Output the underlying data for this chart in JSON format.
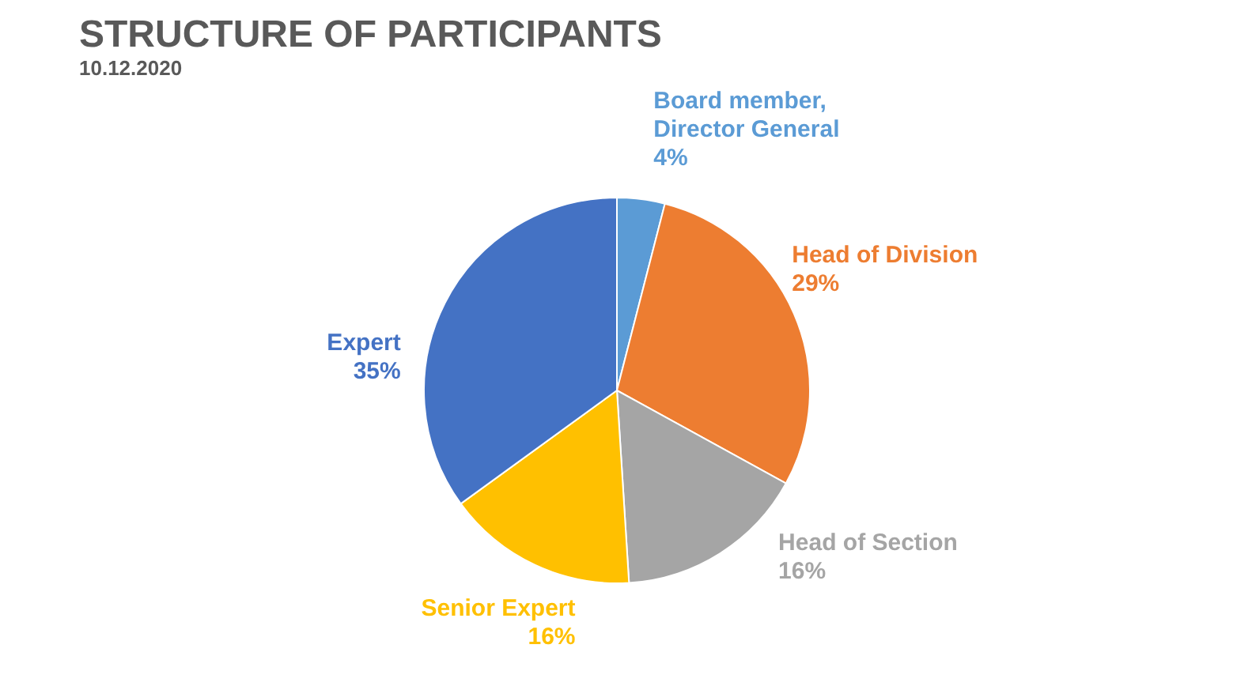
{
  "chart_data": {
    "type": "pie",
    "title": "STRUCTURE OF PARTICIPANTS",
    "subtitle": "10.12.2020",
    "categories": [
      "Board member, Director General",
      "Head of Division",
      "Head of Section",
      "Senior Expert",
      "Expert"
    ],
    "values": [
      4,
      29,
      16,
      16,
      35
    ],
    "colors": [
      "#5b9bd5",
      "#ed7d31",
      "#a5a5a5",
      "#ffc000",
      "#4472c4"
    ],
    "data_labels": true,
    "value_labels": [
      "4%",
      "29%",
      "16%",
      "16%",
      "35%"
    ],
    "legend": false
  }
}
